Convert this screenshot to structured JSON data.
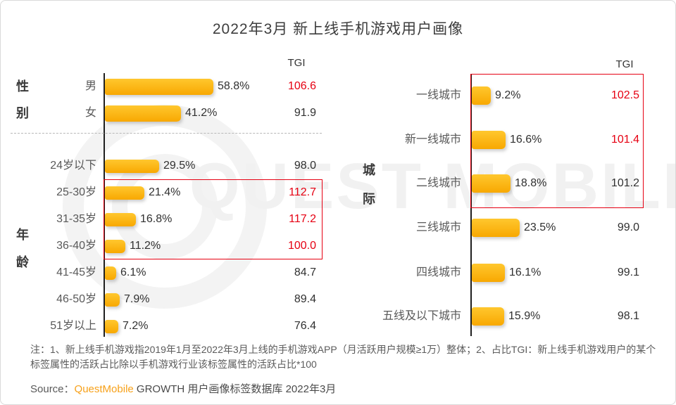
{
  "title": "2022年3月 新上线手机游戏用户画像",
  "watermark": {
    "text": "QUEST MOBILE"
  },
  "colors": {
    "bar_gradient_top": "#ffc72e",
    "bar_gradient_bottom": "#f8a801",
    "tgi_red": "#e60012",
    "box_border": "#e60012",
    "brand_orange": "#f7a11a",
    "axis": "#1f1f1f"
  },
  "note": {
    "text": "注：1、新上线手机游戏指2019年1月至2022年3月上线的手机游戏APP（月活跃用户规模≥1万）整体；2、占比TGI：新上线手机游戏用户的某个标签属性的活跃占比除以手机游戏行业该标签属性的活跃占比*100"
  },
  "source": {
    "prefix": "Source：",
    "brand": "QuestMobile",
    "suffix": " GROWTH 用户画像标签数据库 2022年3月"
  },
  "chart_data": [
    {
      "type": "bar",
      "panel": "left",
      "title": "性别 / 年龄 用户占比与TGI",
      "tgi_header": "TGI",
      "group_labels": [
        "性别",
        "年龄"
      ],
      "categories": [
        "男",
        "女",
        "24岁以下",
        "25-30岁",
        "31-35岁",
        "36-40岁",
        "41-45岁",
        "46-50岁",
        "51岁以上"
      ],
      "values": [
        58.8,
        41.2,
        29.5,
        21.4,
        16.8,
        11.2,
        6.1,
        7.9,
        7.2
      ],
      "value_labels": [
        "58.8%",
        "41.2%",
        "29.5%",
        "21.4%",
        "16.8%",
        "11.2%",
        "6.1%",
        "7.9%",
        "7.2%"
      ],
      "tgi": [
        106.6,
        91.9,
        98.0,
        112.7,
        117.2,
        100.0,
        84.7,
        89.4,
        76.4
      ],
      "tgi_labels": [
        "106.6",
        "91.9",
        "98.0",
        "112.7",
        "117.2",
        "100.0",
        "84.7",
        "89.4",
        "76.4"
      ],
      "tgi_red": [
        true,
        false,
        false,
        true,
        true,
        true,
        false,
        false,
        false
      ],
      "highlight_box_categories": [
        "25-30岁",
        "31-35岁",
        "36-40岁"
      ],
      "unit": "%",
      "xlim": [
        0,
        60
      ]
    },
    {
      "type": "bar",
      "panel": "right",
      "title": "城际 用户占比与TGI",
      "tgi_header": "TGI",
      "group_labels": [
        "城际"
      ],
      "categories": [
        "一线城市",
        "新一线城市",
        "二线城市",
        "三线城市",
        "四线城市",
        "五线及以下城市"
      ],
      "values": [
        9.2,
        16.6,
        18.8,
        23.5,
        16.1,
        15.9
      ],
      "value_labels": [
        "9.2%",
        "16.6%",
        "18.8%",
        "23.5%",
        "16.1%",
        "15.9%"
      ],
      "tgi": [
        102.5,
        101.4,
        101.2,
        99.0,
        99.1,
        98.1
      ],
      "tgi_labels": [
        "102.5",
        "101.4",
        "101.2",
        "99.0",
        "99.1",
        "98.1"
      ],
      "tgi_red": [
        true,
        true,
        false,
        false,
        false,
        false
      ],
      "highlight_box_categories": [
        "一线城市",
        "新一线城市",
        "二线城市"
      ],
      "unit": "%",
      "xlim": [
        0,
        25
      ]
    }
  ]
}
